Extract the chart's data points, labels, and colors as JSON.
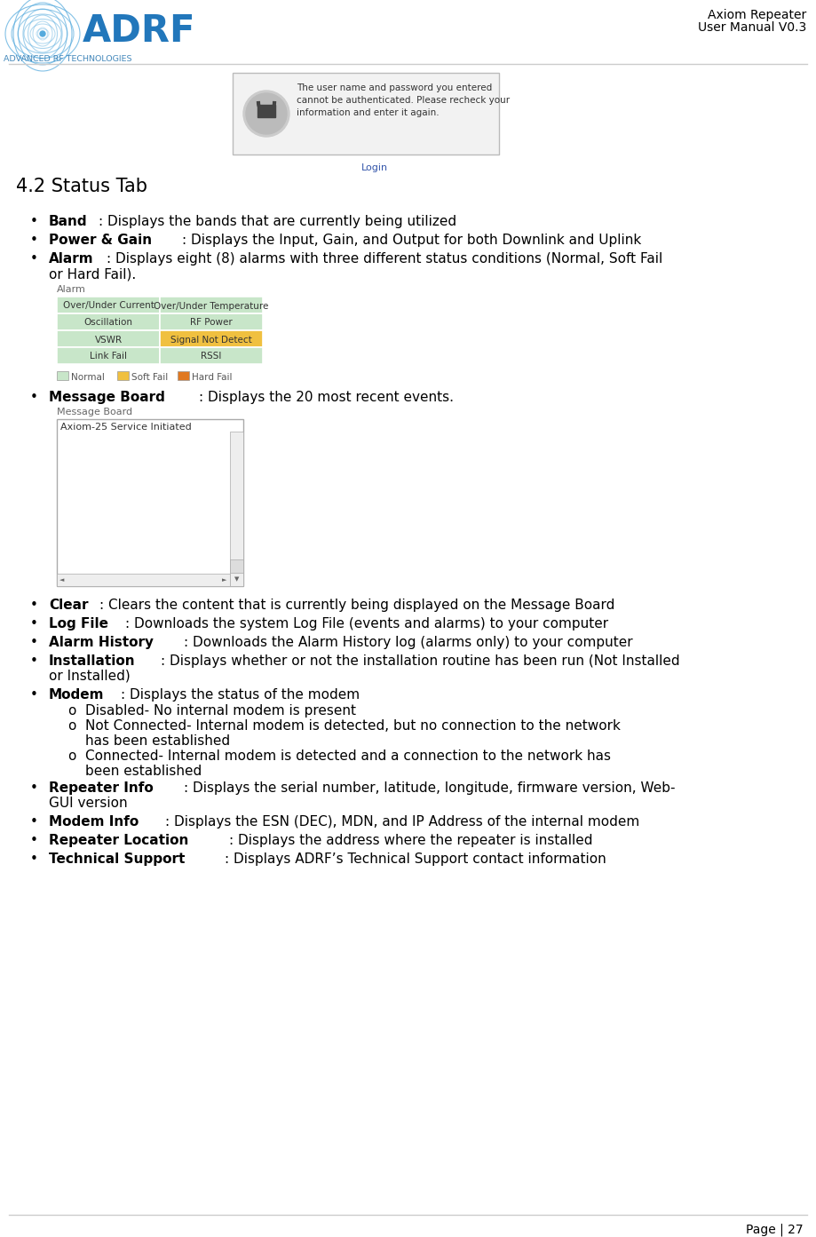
{
  "page_title_line1": "Axiom Repeater",
  "page_title_line2": "User Manual V0.3",
  "page_number": "Page | 27",
  "section_title": "4.2 Status Tab",
  "bg_color": "#ffffff",
  "bullet_items": [
    {
      "bold": "Band",
      "rest": ": Displays the bands that are currently being utilized"
    },
    {
      "bold": "Power & Gain",
      "rest": ": Displays the Input, Gain, and Output for both Downlink and Uplink"
    },
    {
      "bold": "Alarm",
      "rest": ": Displays eight (8) alarms with three different status conditions (Normal, Soft Fail",
      "rest2": "or Hard Fail)."
    },
    {
      "bold": "Message Board",
      "rest": ": Displays the 20 most recent events."
    },
    {
      "bold": "Clear",
      "rest": ": Clears the content that is currently being displayed on the Message Board"
    },
    {
      "bold": "Log File",
      "rest": ": Downloads the system Log File (events and alarms) to your computer"
    },
    {
      "bold": "Alarm History",
      "rest": ": Downloads the Alarm History log (alarms only) to your computer"
    },
    {
      "bold": "Installation",
      "rest": ": Displays whether or not the installation routine has been run (Not Installed",
      "rest2": "or Installed)"
    },
    {
      "bold": "Modem",
      "rest": ": Displays the status of the modem"
    },
    {
      "bold": "Repeater Info",
      "rest": ": Displays the serial number, latitude, longitude, firmware version, Web-",
      "rest2": "GUI version"
    },
    {
      "bold": "Modem Info",
      "rest": ": Displays the ESN (DEC), MDN, and IP Address of the internal modem"
    },
    {
      "bold": "Repeater Location",
      "rest": ": Displays the address where the repeater is installed"
    },
    {
      "bold": "Technical Support",
      "rest": ": Displays ADRF’s Technical Support contact information"
    }
  ],
  "modem_sub_items": [
    {
      "line1": "Disabled- No internal modem is present",
      "line2": null
    },
    {
      "line1": "Not Connected- Internal modem is detected, but no connection to the network",
      "line2": "has been established"
    },
    {
      "line1": "Connected- Internal modem is detected and a connection to the network has",
      "line2": "been established"
    }
  ],
  "alarm_table": {
    "rows": [
      [
        "Over/Under Current",
        "Over/Under Temperature"
      ],
      [
        "Oscillation",
        "RF Power"
      ],
      [
        "VSWR",
        "Signal Not Detect"
      ],
      [
        "Link Fail",
        "RSSI"
      ]
    ],
    "colors": [
      [
        "#c8e6c9",
        "#c8e6c9"
      ],
      [
        "#c8e6c9",
        "#c8e6c9"
      ],
      [
        "#c8e6c9",
        "#f0c040"
      ],
      [
        "#c8e6c9",
        "#c8e6c9"
      ]
    ],
    "label": "Alarm"
  },
  "alarm_legend": [
    {
      "color": "#c8e6c9",
      "label": "Normal"
    },
    {
      "color": "#f0c040",
      "label": "Soft Fail"
    },
    {
      "color": "#e07820",
      "label": "Hard Fail"
    }
  ],
  "message_board_label": "Message Board",
  "message_board_text": "Axiom-25 Service Initiated",
  "login_dialog_text": "The user name and password you entered\ncannot be authenticated. Please recheck your\ninformation and enter it again.",
  "login_button_text": "Login",
  "adrf_blue": "#2277bb",
  "adrf_light_blue": "#55aadd",
  "adrf_sub_text_color": "#4488bb",
  "header_rule_color": "#cccccc",
  "footer_rule_color": "#cccccc"
}
